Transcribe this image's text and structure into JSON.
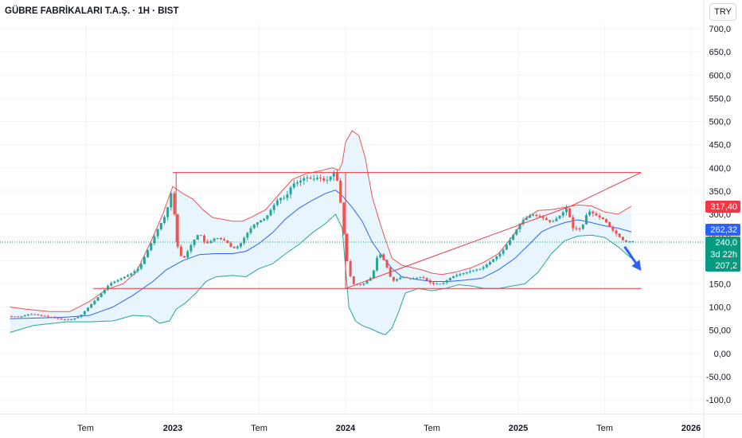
{
  "header": {
    "title": "GÜBRE FABRİKALARI T.A.Ş. · 1H · BIST",
    "currency": "TRY"
  },
  "chart_data": {
    "type": "candlestick",
    "ylim": [
      -100,
      725
    ],
    "y_ticks": [
      "700,0",
      "650,0",
      "600,0",
      "550,0",
      "500,0",
      "450,0",
      "400,0",
      "350,0",
      "300,0",
      "250,0",
      "200,0",
      "150,0",
      "100,0",
      "50,00",
      "0,00",
      "-50,00",
      "-100,0"
    ],
    "y_tick_values": [
      700,
      650,
      600,
      550,
      500,
      450,
      400,
      350,
      300,
      250,
      200,
      150,
      100,
      50,
      0,
      -50,
      -100
    ],
    "x_ticks": [
      "Tem",
      "2023",
      "Tem",
      "2024",
      "Tem",
      "2025",
      "Tem",
      "2026"
    ],
    "x_tick_weeks": [
      26,
      52,
      78,
      104,
      130,
      156,
      182,
      208
    ],
    "week_range": [
      3,
      215
    ],
    "colors": {
      "up": "#26a69a",
      "down": "#ef5350",
      "ma": "#2962ff",
      "upper": "#ef5350",
      "lower": "#26a69a",
      "band_fill": "#e3f2fd",
      "trendline": "#f23645",
      "arrow": "#2962ff"
    },
    "price_labels": [
      {
        "value": 317.4,
        "text": "317,40",
        "color": "#f23645"
      },
      {
        "value": 262.32,
        "text": "262,32",
        "color": "#2962ff"
      },
      {
        "value": 240.0,
        "text": "240,0",
        "color": "#089981",
        "sub": "3d 22h"
      },
      {
        "value": 207.2,
        "text": "207,2",
        "color": "#089981"
      }
    ],
    "current_price": 240.0,
    "prices": [
      [
        3,
        80
      ],
      [
        6,
        79
      ],
      [
        9,
        85
      ],
      [
        12,
        82
      ],
      [
        15,
        78
      ],
      [
        18,
        74
      ],
      [
        21,
        72
      ],
      [
        24,
        80
      ],
      [
        27,
        102
      ],
      [
        30,
        125
      ],
      [
        33,
        150
      ],
      [
        36,
        160
      ],
      [
        39,
        170
      ],
      [
        42,
        185
      ],
      [
        45,
        230
      ],
      [
        48,
        275
      ],
      [
        50,
        300
      ],
      [
        52,
        360
      ],
      [
        53,
        240
      ],
      [
        55,
        200
      ],
      [
        58,
        240
      ],
      [
        60,
        260
      ],
      [
        62,
        235
      ],
      [
        65,
        250
      ],
      [
        68,
        242
      ],
      [
        70,
        225
      ],
      [
        72,
        232
      ],
      [
        74,
        255
      ],
      [
        76,
        275
      ],
      [
        78,
        285
      ],
      [
        80,
        292
      ],
      [
        82,
        315
      ],
      [
        84,
        335
      ],
      [
        86,
        335
      ],
      [
        88,
        365
      ],
      [
        90,
        370
      ],
      [
        92,
        380
      ],
      [
        94,
        375
      ],
      [
        96,
        380
      ],
      [
        98,
        370
      ],
      [
        100,
        385
      ],
      [
        101,
        395
      ],
      [
        102,
        350
      ],
      [
        103,
        300
      ],
      [
        104,
        215
      ],
      [
        106,
        150
      ],
      [
        109,
        148
      ],
      [
        112,
        165
      ],
      [
        114,
        220
      ],
      [
        116,
        195
      ],
      [
        118,
        155
      ],
      [
        121,
        165
      ],
      [
        124,
        160
      ],
      [
        127,
        165
      ],
      [
        130,
        150
      ],
      [
        133,
        150
      ],
      [
        136,
        165
      ],
      [
        139,
        172
      ],
      [
        142,
        178
      ],
      [
        145,
        183
      ],
      [
        148,
        200
      ],
      [
        151,
        218
      ],
      [
        154,
        250
      ],
      [
        157,
        285
      ],
      [
        160,
        300
      ],
      [
        163,
        293
      ],
      [
        166,
        282
      ],
      [
        169,
        300
      ],
      [
        171,
        317
      ],
      [
        172,
        270
      ],
      [
        175,
        268
      ],
      [
        177,
        308
      ],
      [
        180,
        295
      ],
      [
        182,
        288
      ],
      [
        184,
        268
      ],
      [
        186,
        255
      ],
      [
        188,
        240
      ],
      [
        190,
        242
      ]
    ],
    "ma": [
      [
        3,
        75
      ],
      [
        10,
        76
      ],
      [
        20,
        78
      ],
      [
        27,
        82
      ],
      [
        34,
        100
      ],
      [
        40,
        125
      ],
      [
        46,
        155
      ],
      [
        50,
        180
      ],
      [
        55,
        200
      ],
      [
        60,
        213
      ],
      [
        65,
        215
      ],
      [
        70,
        215
      ],
      [
        74,
        220
      ],
      [
        78,
        237
      ],
      [
        82,
        260
      ],
      [
        86,
        290
      ],
      [
        90,
        313
      ],
      [
        94,
        330
      ],
      [
        98,
        345
      ],
      [
        101,
        352
      ],
      [
        103,
        340
      ],
      [
        106,
        315
      ],
      [
        109,
        285
      ],
      [
        112,
        240
      ],
      [
        115,
        210
      ],
      [
        118,
        183
      ],
      [
        121,
        165
      ],
      [
        125,
        160
      ],
      [
        130,
        155
      ],
      [
        135,
        155
      ],
      [
        140,
        158
      ],
      [
        145,
        162
      ],
      [
        150,
        180
      ],
      [
        155,
        205
      ],
      [
        160,
        240
      ],
      [
        163,
        262
      ],
      [
        166,
        272
      ],
      [
        170,
        282
      ],
      [
        174,
        288
      ],
      [
        178,
        282
      ],
      [
        182,
        275
      ],
      [
        186,
        270
      ],
      [
        190,
        262
      ]
    ],
    "upper": [
      [
        3,
        100
      ],
      [
        8,
        95
      ],
      [
        15,
        90
      ],
      [
        21,
        90
      ],
      [
        27,
        112
      ],
      [
        32,
        138
      ],
      [
        37,
        150
      ],
      [
        41,
        175
      ],
      [
        45,
        235
      ],
      [
        49,
        300
      ],
      [
        52,
        360
      ],
      [
        55,
        345
      ],
      [
        58,
        333
      ],
      [
        61,
        310
      ],
      [
        64,
        293
      ],
      [
        67,
        289
      ],
      [
        70,
        285
      ],
      [
        73,
        285
      ],
      [
        76,
        295
      ],
      [
        80,
        310
      ],
      [
        84,
        343
      ],
      [
        88,
        375
      ],
      [
        92,
        387
      ],
      [
        96,
        393
      ],
      [
        100,
        400
      ],
      [
        102,
        395
      ],
      [
        103,
        410
      ],
      [
        104,
        455
      ],
      [
        106,
        480
      ],
      [
        108,
        470
      ],
      [
        110,
        420
      ],
      [
        112,
        338
      ],
      [
        114,
        290
      ],
      [
        116,
        245
      ],
      [
        118,
        205
      ],
      [
        121,
        190
      ],
      [
        124,
        185
      ],
      [
        127,
        180
      ],
      [
        130,
        173
      ],
      [
        133,
        170
      ],
      [
        137,
        175
      ],
      [
        142,
        185
      ],
      [
        146,
        198
      ],
      [
        150,
        215
      ],
      [
        154,
        250
      ],
      [
        158,
        290
      ],
      [
        162,
        308
      ],
      [
        166,
        310
      ],
      [
        170,
        315
      ],
      [
        174,
        320
      ],
      [
        178,
        318
      ],
      [
        182,
        305
      ],
      [
        186,
        300
      ],
      [
        190,
        317
      ]
    ],
    "lower": [
      [
        3,
        45
      ],
      [
        10,
        60
      ],
      [
        20,
        68
      ],
      [
        27,
        68
      ],
      [
        34,
        70
      ],
      [
        40,
        82
      ],
      [
        45,
        80
      ],
      [
        48,
        65
      ],
      [
        51,
        70
      ],
      [
        53,
        95
      ],
      [
        56,
        110
      ],
      [
        59,
        130
      ],
      [
        62,
        155
      ],
      [
        65,
        165
      ],
      [
        70,
        168
      ],
      [
        74,
        165
      ],
      [
        78,
        183
      ],
      [
        82,
        193
      ],
      [
        86,
        215
      ],
      [
        90,
        235
      ],
      [
        94,
        260
      ],
      [
        98,
        280
      ],
      [
        101,
        300
      ],
      [
        103,
        270
      ],
      [
        105,
        100
      ],
      [
        107,
        70
      ],
      [
        109,
        60
      ],
      [
        112,
        52
      ],
      [
        114,
        45
      ],
      [
        116,
        40
      ],
      [
        118,
        55
      ],
      [
        120,
        90
      ],
      [
        122,
        130
      ],
      [
        126,
        140
      ],
      [
        130,
        135
      ],
      [
        134,
        140
      ],
      [
        138,
        148
      ],
      [
        142,
        145
      ],
      [
        146,
        140
      ],
      [
        150,
        140
      ],
      [
        154,
        145
      ],
      [
        158,
        150
      ],
      [
        162,
        175
      ],
      [
        166,
        215
      ],
      [
        170,
        243
      ],
      [
        174,
        253
      ],
      [
        178,
        255
      ],
      [
        182,
        250
      ],
      [
        186,
        230
      ],
      [
        190,
        205
      ]
    ],
    "trendlines": [
      {
        "points": [
          [
            52,
            390
          ],
          [
            104,
            390
          ],
          [
            193,
            390
          ]
        ]
      },
      {
        "points": [
          [
            28,
            140
          ],
          [
            104,
            140
          ],
          [
            193,
            140
          ]
        ]
      },
      {
        "points": [
          [
            104,
            140
          ],
          [
            172,
            318
          ],
          [
            193,
            390
          ]
        ]
      },
      {
        "points": [
          [
            53,
            240
          ],
          [
            53,
            390
          ]
        ]
      },
      {
        "points": [
          [
            104,
            140
          ],
          [
            104,
            390
          ]
        ]
      }
    ],
    "arrow": {
      "from": [
        188,
        230
      ],
      "to": [
        193,
        178
      ]
    }
  }
}
